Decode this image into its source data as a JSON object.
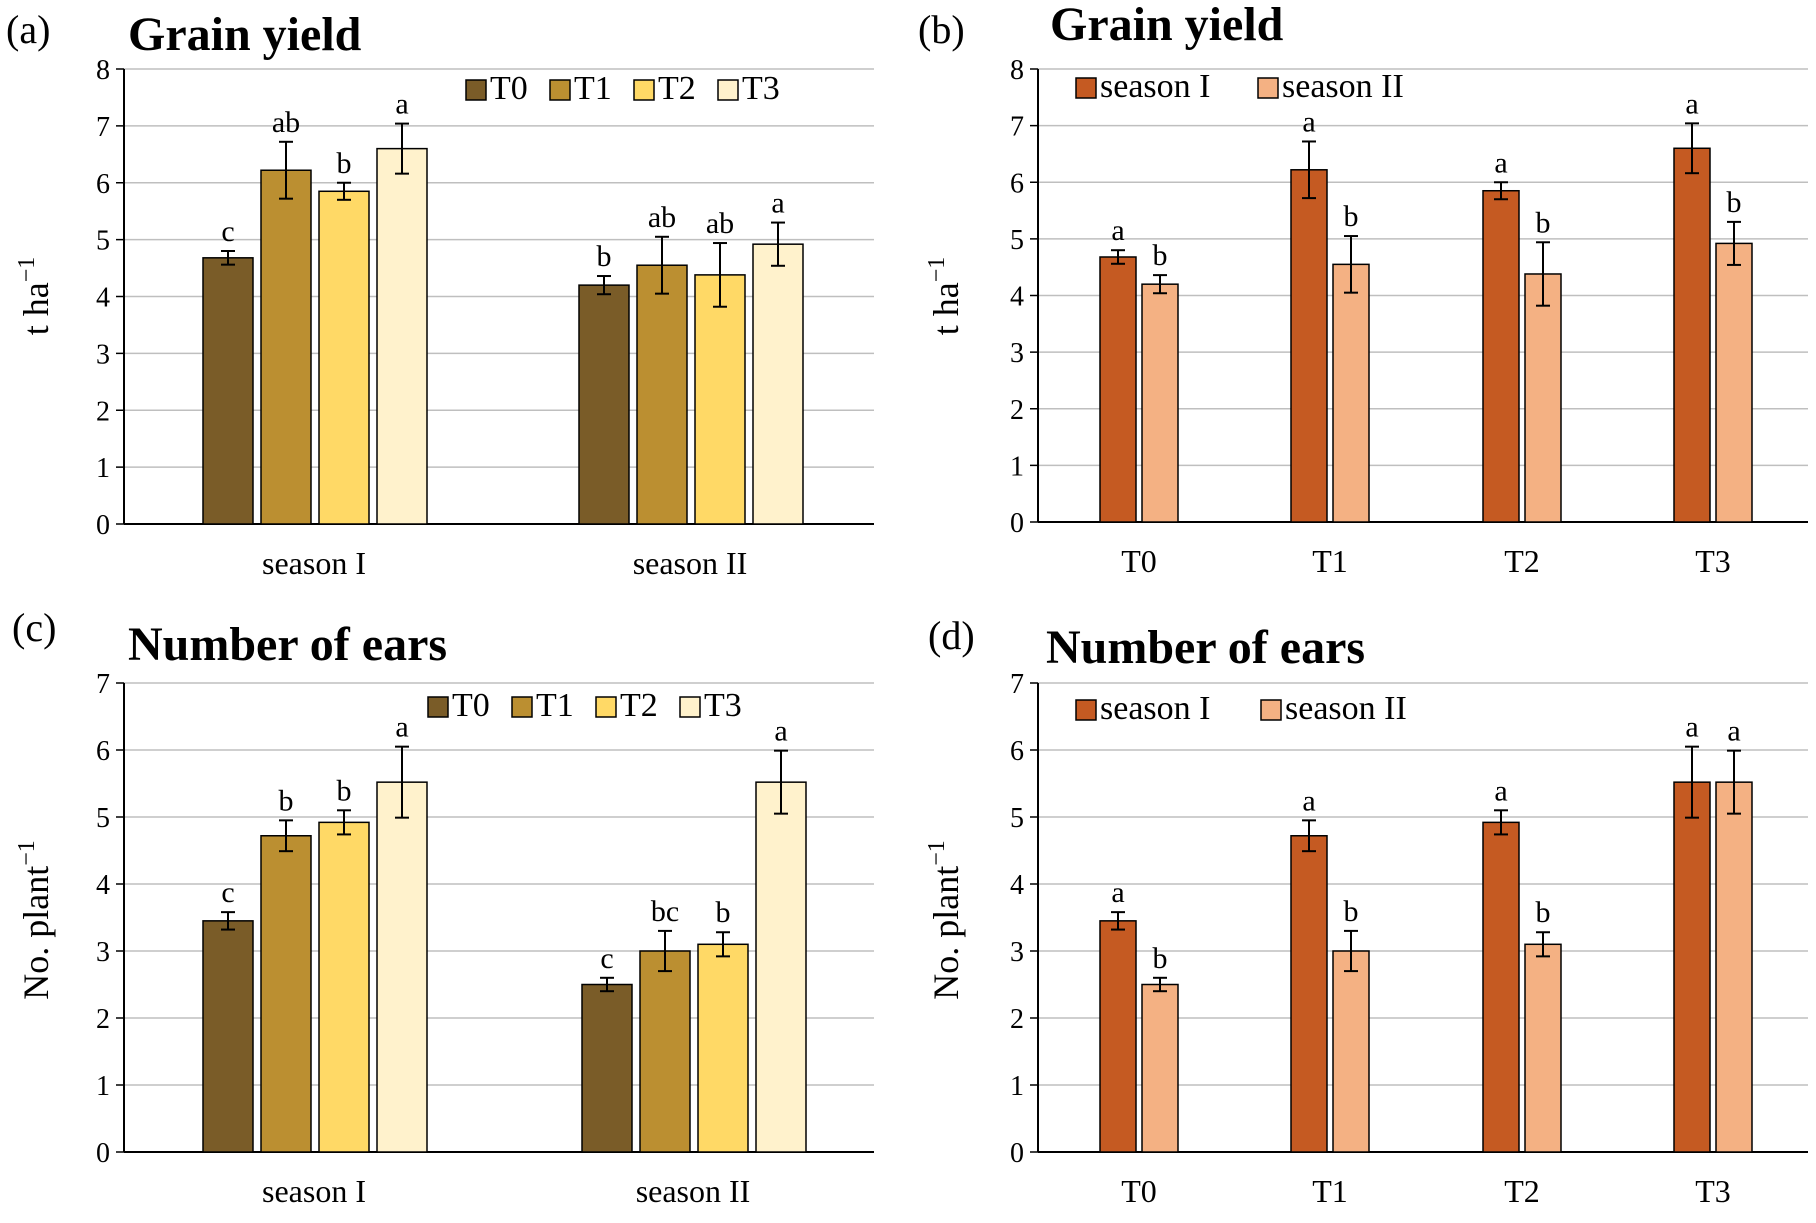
{
  "colors": {
    "T0": "#7a5c28",
    "T1": "#bb8f31",
    "T2": "#ffd966",
    "T3": "#fff2cc",
    "season_I": "#c55a22",
    "season_II": "#f4b183",
    "grid": "#bfbfbf",
    "axis": "#000000"
  },
  "chart_data": [
    {
      "panel": "(a)",
      "title": "Grain yield",
      "type": "bar",
      "ylabel": "t ha",
      "ylabel_sup": "−1",
      "ylim": [
        0,
        8
      ],
      "yticks": [
        0,
        1,
        2,
        3,
        4,
        5,
        6,
        7,
        8
      ],
      "grid": true,
      "legend_position": "top-right",
      "categories": [
        "season I",
        "season II"
      ],
      "series": [
        {
          "name": "T0",
          "color_key": "T0",
          "values": [
            4.68,
            4.2
          ],
          "errors": [
            0.12,
            0.16
          ],
          "letters": [
            "c",
            "b"
          ]
        },
        {
          "name": "T1",
          "color_key": "T1",
          "values": [
            6.22,
            4.55
          ],
          "errors": [
            0.5,
            0.5
          ],
          "letters": [
            "ab",
            "ab"
          ]
        },
        {
          "name": "T2",
          "color_key": "T2",
          "values": [
            5.85,
            4.38
          ],
          "errors": [
            0.15,
            0.56
          ],
          "letters": [
            "b",
            "ab"
          ]
        },
        {
          "name": "T3",
          "color_key": "T3",
          "values": [
            6.6,
            4.92
          ],
          "errors": [
            0.44,
            0.38
          ],
          "letters": [
            "a",
            "a"
          ]
        }
      ]
    },
    {
      "panel": "(b)",
      "title": "Grain yield",
      "type": "bar",
      "ylabel": "t ha",
      "ylabel_sup": "−1",
      "ylim": [
        0,
        8
      ],
      "yticks": [
        0,
        1,
        2,
        3,
        4,
        5,
        6,
        7,
        8
      ],
      "grid": true,
      "legend_position": "top-left",
      "categories": [
        "T0",
        "T1",
        "T2",
        "T3"
      ],
      "series": [
        {
          "name": "season I",
          "color_key": "season_I",
          "values": [
            4.68,
            6.22,
            5.85,
            6.6
          ],
          "errors": [
            0.12,
            0.5,
            0.15,
            0.44
          ],
          "letters": [
            "a",
            "a",
            "a",
            "a"
          ]
        },
        {
          "name": "season II",
          "color_key": "season_II",
          "values": [
            4.2,
            4.55,
            4.38,
            4.92
          ],
          "errors": [
            0.16,
            0.5,
            0.56,
            0.38
          ],
          "letters": [
            "b",
            "b",
            "b",
            "b"
          ]
        }
      ]
    },
    {
      "panel": "(c)",
      "title": "Number of ears",
      "type": "bar",
      "ylabel": "No. plant",
      "ylabel_sup": "−1",
      "ylim": [
        0,
        7
      ],
      "yticks": [
        0,
        1,
        2,
        3,
        4,
        5,
        6,
        7
      ],
      "grid": true,
      "legend_position": "top-right",
      "categories": [
        "season I",
        "season II"
      ],
      "series": [
        {
          "name": "T0",
          "color_key": "T0",
          "values": [
            3.45,
            2.5
          ],
          "errors": [
            0.13,
            0.1
          ],
          "letters": [
            "c",
            "c"
          ]
        },
        {
          "name": "T1",
          "color_key": "T1",
          "values": [
            4.72,
            3.0
          ],
          "errors": [
            0.23,
            0.3
          ],
          "letters": [
            "b",
            "bc"
          ]
        },
        {
          "name": "T2",
          "color_key": "T2",
          "values": [
            4.92,
            3.1
          ],
          "errors": [
            0.18,
            0.18
          ],
          "letters": [
            "b",
            "b"
          ]
        },
        {
          "name": "T3",
          "color_key": "T3",
          "values": [
            5.52,
            5.52
          ],
          "errors": [
            0.53,
            0.47
          ],
          "letters": [
            "a",
            "a"
          ]
        }
      ]
    },
    {
      "panel": "(d)",
      "title": "Number of ears",
      "type": "bar",
      "ylabel": "No. plant",
      "ylabel_sup": "−1",
      "ylim": [
        0,
        7
      ],
      "yticks": [
        0,
        1,
        2,
        3,
        4,
        5,
        6,
        7
      ],
      "grid": true,
      "legend_position": "top-left",
      "categories": [
        "T0",
        "T1",
        "T2",
        "T3"
      ],
      "series": [
        {
          "name": "season I",
          "color_key": "season_I",
          "values": [
            3.45,
            4.72,
            4.92,
            5.52
          ],
          "errors": [
            0.13,
            0.23,
            0.18,
            0.53
          ],
          "letters": [
            "a",
            "a",
            "a",
            "a"
          ]
        },
        {
          "name": "season II",
          "color_key": "season_II",
          "values": [
            2.5,
            3.0,
            3.1,
            5.52
          ],
          "errors": [
            0.1,
            0.3,
            0.18,
            0.47
          ],
          "letters": [
            "b",
            "b",
            "b",
            "a"
          ]
        }
      ]
    }
  ]
}
